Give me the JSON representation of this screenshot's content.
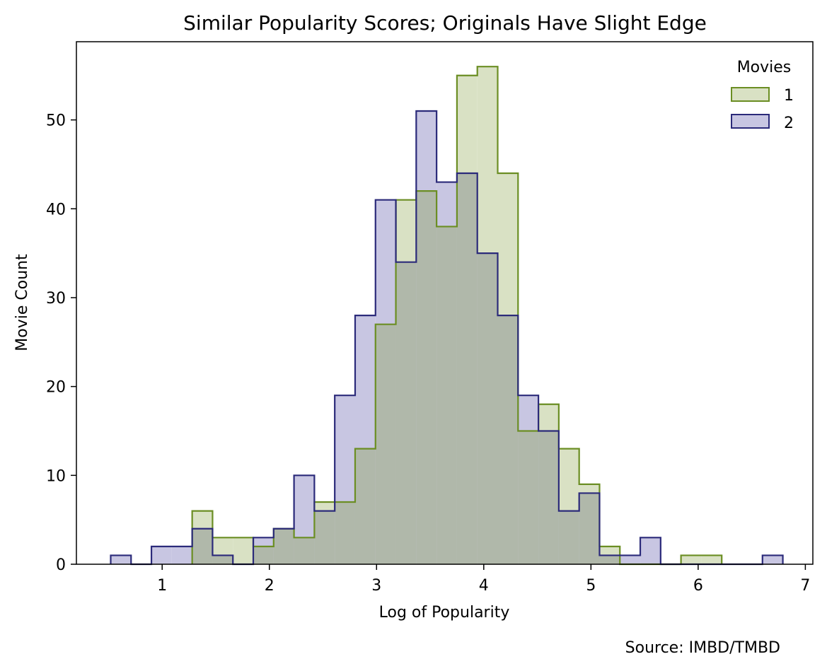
{
  "chart_data": {
    "type": "histogram",
    "title": "Similar Popularity Scores; Originals Have Slight Edge",
    "xlabel": "Log of Popularity",
    "ylabel": "Movie Count",
    "xlim": [
      0.2,
      7.07
    ],
    "ylim": [
      0,
      58.8
    ],
    "xticks": [
      "1",
      "2",
      "3",
      "4",
      "5",
      "6",
      "7"
    ],
    "yticks": [
      "0",
      "10",
      "20",
      "30",
      "40",
      "50"
    ],
    "grid": false,
    "legend": {
      "title": "Movies",
      "placement": "top-right"
    },
    "source": "Source: IMBD/TMBD",
    "series": [
      {
        "name": "1",
        "fill": "#d9e1c4",
        "stroke": "#6b8e23",
        "bin_edges": [
          0.52,
          0.71,
          0.9,
          1.09,
          1.28,
          1.47,
          1.66,
          1.85,
          2.04,
          2.23,
          2.42,
          2.61,
          2.8,
          2.99,
          3.18,
          3.37,
          3.56,
          3.75,
          3.94,
          4.13,
          4.32,
          4.51,
          4.7,
          4.89,
          5.08,
          5.27,
          5.46,
          5.65,
          5.84,
          6.03,
          6.22,
          6.41,
          6.6,
          6.79
        ],
        "counts": [
          0,
          0,
          0,
          0,
          6,
          3,
          3,
          2,
          4,
          3,
          7,
          7,
          13,
          27,
          41,
          42,
          38,
          55,
          56,
          44,
          15,
          18,
          13,
          9,
          2,
          0,
          0,
          0,
          1,
          1,
          0,
          0,
          0
        ]
      },
      {
        "name": "2",
        "fill": "#c8c6e2",
        "stroke": "#2b2a7a",
        "bin_edges": [
          0.52,
          0.71,
          0.9,
          1.09,
          1.28,
          1.47,
          1.66,
          1.85,
          2.04,
          2.23,
          2.42,
          2.61,
          2.8,
          2.99,
          3.18,
          3.37,
          3.56,
          3.75,
          3.94,
          4.13,
          4.32,
          4.51,
          4.7,
          4.89,
          5.08,
          5.27,
          5.46,
          5.65,
          5.84,
          6.03,
          6.22,
          6.41,
          6.6,
          6.79
        ],
        "counts": [
          1,
          0,
          2,
          2,
          4,
          1,
          0,
          3,
          4,
          10,
          6,
          19,
          28,
          41,
          34,
          51,
          43,
          44,
          35,
          28,
          19,
          15,
          6,
          8,
          1,
          1,
          3,
          0,
          0,
          0,
          0,
          0,
          1
        ]
      }
    ],
    "overlap_fill": "#b0b8aa"
  }
}
